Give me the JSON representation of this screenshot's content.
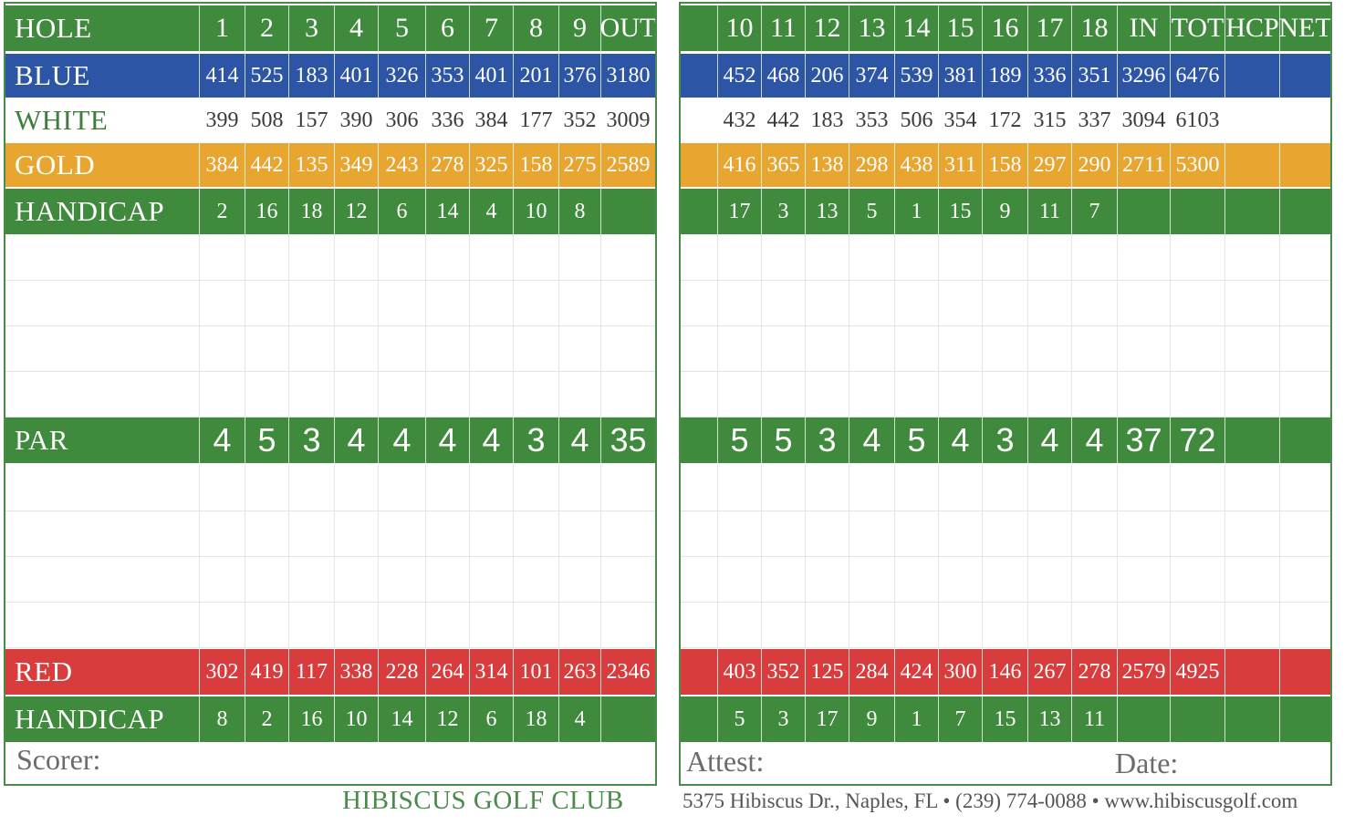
{
  "colors": {
    "green": "#3f8a3c",
    "blue": "#2d55a6",
    "gold": "#e8a530",
    "red": "#d83c3c",
    "white": "#ffffff"
  },
  "rows": [
    {
      "id": "hole",
      "label": "HOLE",
      "style": "green",
      "front": [
        "1",
        "2",
        "3",
        "4",
        "5",
        "6",
        "7",
        "8",
        "9",
        "OUT"
      ],
      "back": [
        "10",
        "11",
        "12",
        "13",
        "14",
        "15",
        "16",
        "17",
        "18",
        "IN",
        "TOT",
        "HCP",
        "NET"
      ]
    },
    {
      "id": "blue",
      "label": "BLUE",
      "style": "blue",
      "front": [
        "414",
        "525",
        "183",
        "401",
        "326",
        "353",
        "401",
        "201",
        "376",
        "3180"
      ],
      "back": [
        "452",
        "468",
        "206",
        "374",
        "539",
        "381",
        "189",
        "336",
        "351",
        "3296",
        "6476",
        "",
        ""
      ]
    },
    {
      "id": "white",
      "label": "WHITE",
      "style": "white",
      "front": [
        "399",
        "508",
        "157",
        "390",
        "306",
        "336",
        "384",
        "177",
        "352",
        "3009"
      ],
      "back": [
        "432",
        "442",
        "183",
        "353",
        "506",
        "354",
        "172",
        "315",
        "337",
        "3094",
        "6103",
        "",
        ""
      ]
    },
    {
      "id": "gold",
      "label": "GOLD",
      "style": "gold",
      "front": [
        "384",
        "442",
        "135",
        "349",
        "243",
        "278",
        "325",
        "158",
        "275",
        "2589"
      ],
      "back": [
        "416",
        "365",
        "138",
        "298",
        "438",
        "311",
        "158",
        "297",
        "290",
        "2711",
        "5300",
        "",
        ""
      ]
    },
    {
      "id": "handicap1",
      "label": "HANDICAP",
      "style": "green",
      "front": [
        "2",
        "16",
        "18",
        "12",
        "6",
        "14",
        "4",
        "10",
        "8",
        ""
      ],
      "back": [
        "17",
        "3",
        "13",
        "5",
        "1",
        "15",
        "9",
        "11",
        "7",
        "",
        "",
        "",
        ""
      ]
    },
    {
      "id": "blank1",
      "label": "",
      "style": "blank"
    },
    {
      "id": "blank2",
      "label": "",
      "style": "blank"
    },
    {
      "id": "blank3",
      "label": "",
      "style": "blank"
    },
    {
      "id": "blank4",
      "label": "",
      "style": "blank"
    },
    {
      "id": "par",
      "label": "PAR",
      "style": "green",
      "front": [
        "4",
        "5",
        "3",
        "4",
        "4",
        "4",
        "4",
        "3",
        "4",
        "35"
      ],
      "back": [
        "5",
        "5",
        "3",
        "4",
        "5",
        "4",
        "3",
        "4",
        "4",
        "37",
        "72",
        "",
        ""
      ]
    },
    {
      "id": "blank5",
      "label": "",
      "style": "blank"
    },
    {
      "id": "blank6",
      "label": "",
      "style": "blank"
    },
    {
      "id": "blank7",
      "label": "",
      "style": "blank"
    },
    {
      "id": "blank8",
      "label": "",
      "style": "blank"
    },
    {
      "id": "red",
      "label": "RED",
      "style": "red",
      "front": [
        "302",
        "419",
        "117",
        "338",
        "228",
        "264",
        "314",
        "101",
        "263",
        "2346"
      ],
      "back": [
        "403",
        "352",
        "125",
        "284",
        "424",
        "300",
        "146",
        "267",
        "278",
        "2579",
        "4925",
        "",
        ""
      ]
    },
    {
      "id": "handicap2",
      "label": "HANDICAP",
      "style": "green",
      "front": [
        "8",
        "2",
        "16",
        "10",
        "14",
        "12",
        "6",
        "18",
        "4",
        ""
      ],
      "back": [
        "5",
        "3",
        "17",
        "9",
        "1",
        "7",
        "15",
        "13",
        "11",
        "",
        "",
        "",
        ""
      ]
    }
  ],
  "signatures": {
    "scorer": "Scorer:",
    "attest": "Attest:",
    "date": "Date:"
  },
  "footer": {
    "club": "HIBISCUS GOLF CLUB",
    "address": "5375 Hibiscus Dr., Naples, FL • (239) 774-0088 • www.hibiscusgolf.com"
  }
}
